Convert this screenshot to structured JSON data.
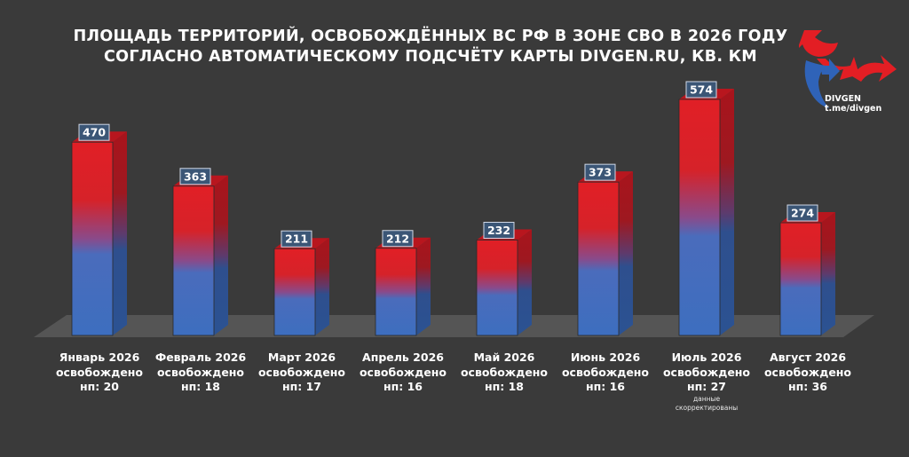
{
  "title": {
    "line1": "ПЛОЩАДЬ ТЕРРИТОРИЙ, ОСВОБОЖДЁННЫХ ВС РФ В ЗОНЕ СВО В 2026 ГОДУ",
    "line2": "СОГЛАСНО АВТОМАТИЧЕСКОМУ ПОДСЧЁТУ КАРТЫ DIVGEN.RU, КВ. КМ"
  },
  "logo": {
    "name": "DIVGEN",
    "channel": "t.me/divgen",
    "icon": "divgen-arrows-logo"
  },
  "colors": {
    "bar_top": "#dd2027",
    "bar_bottom": "#3f6fbd",
    "background": "#3a3a3a"
  },
  "months": [
    {
      "name": "Январь 2026",
      "line2": "освобождено",
      "line3": "нп: 20"
    },
    {
      "name": "Февраль 2026",
      "line2": "освобождено",
      "line3": "нп: 18"
    },
    {
      "name": "Март 2026",
      "line2": "освобождено",
      "line3": "нп: 17"
    },
    {
      "name": "Апрель 2026",
      "line2": "освобождено",
      "line3": "нп: 16"
    },
    {
      "name": "Май 2026",
      "line2": "освобождено",
      "line3": "нп: 18"
    },
    {
      "name": "Июнь 2026",
      "line2": "освобождено",
      "line3": "нп: 16"
    },
    {
      "name": "Июль 2026",
      "line2": "освобождено",
      "line3": "нп: 27",
      "note1": "данные",
      "note2": "скорректированы"
    },
    {
      "name": "Август 2026",
      "line2": "освобождено",
      "line3": "нп: 36"
    }
  ],
  "chart_data": {
    "type": "bar",
    "title": "ПЛОЩАДЬ ТЕРРИТОРИЙ, ОСВОБОЖДЁННЫХ ВС РФ В ЗОНЕ СВО В 2026 ГОДУ СОГЛАСНО АВТОМАТИЧЕСКОМУ ПОДСЧЁТУ КАРТЫ DIVGEN.RU, КВ. КМ",
    "categories": [
      "Январь 2026",
      "Февраль 2026",
      "Март 2026",
      "Апрель 2026",
      "Май 2026",
      "Июнь 2026",
      "Июль 2026",
      "Август 2026"
    ],
    "values": [
      470,
      363,
      211,
      212,
      232,
      373,
      574,
      274
    ],
    "settlements_liberated": [
      20,
      18,
      17,
      16,
      18,
      16,
      27,
      36
    ],
    "ylim": [
      0,
      574
    ],
    "grid": false,
    "legend": "none",
    "style": "3d"
  }
}
